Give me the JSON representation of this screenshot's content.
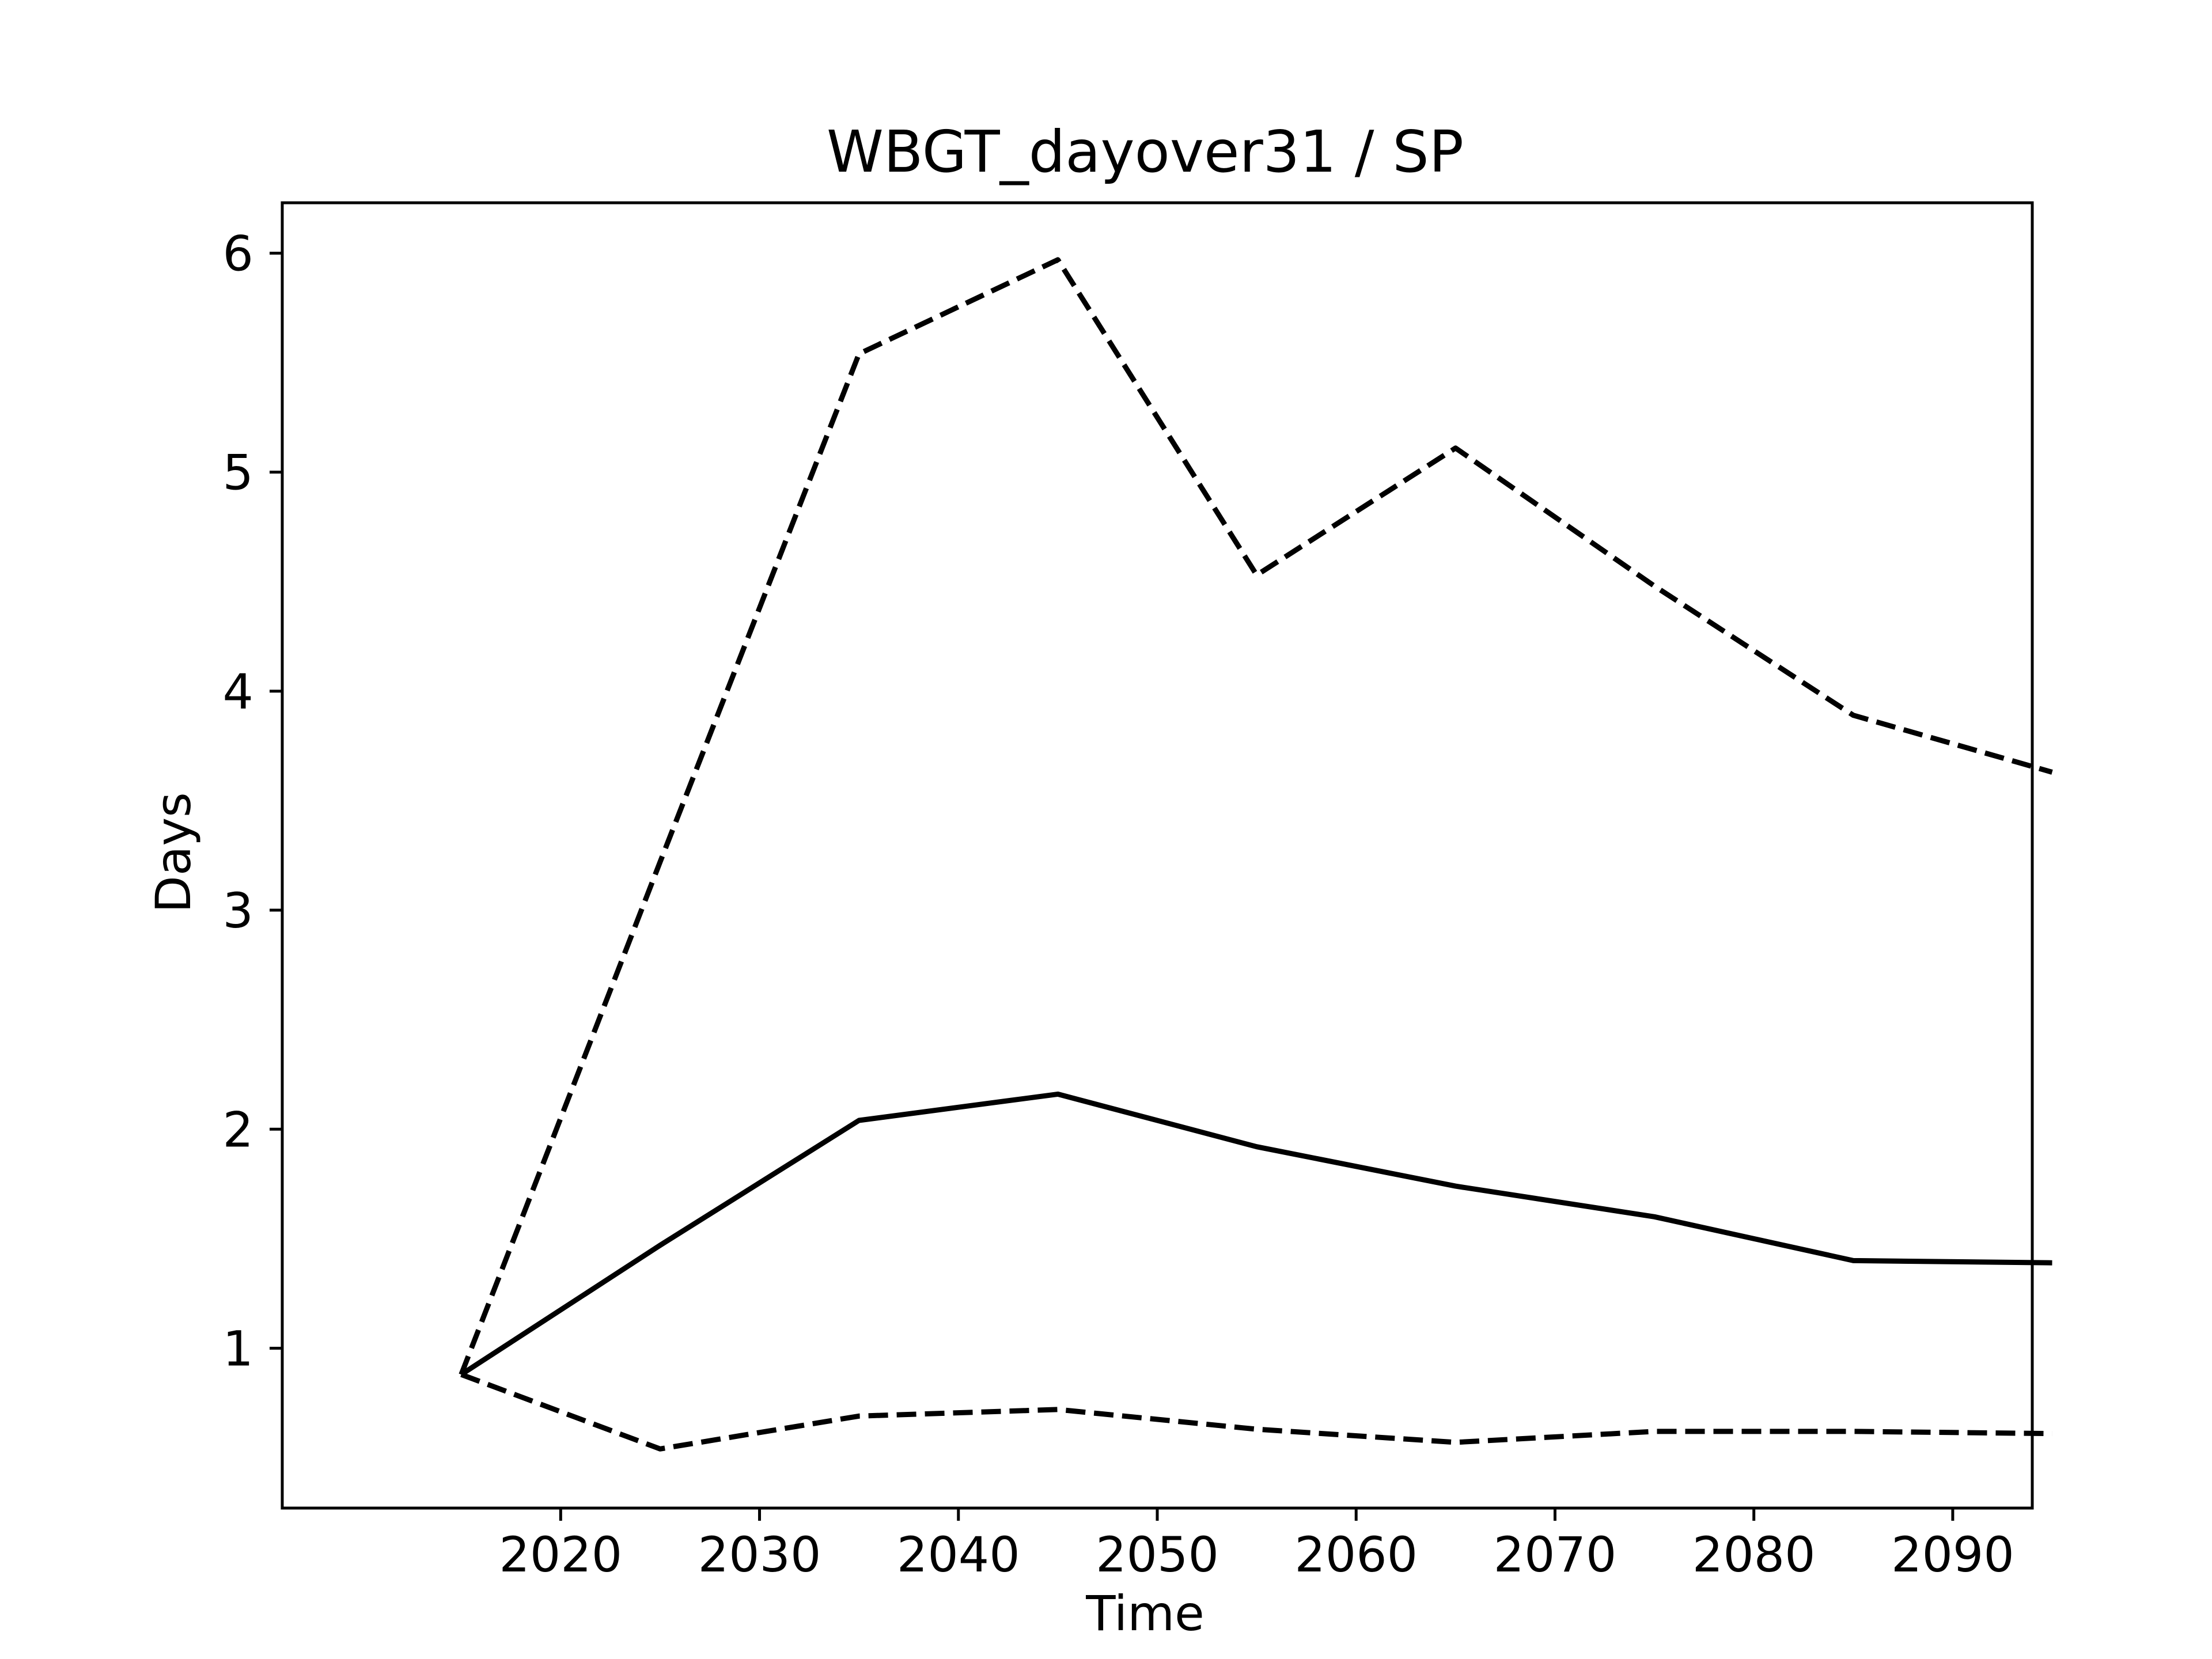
{
  "chart_data": {
    "type": "line",
    "title": "WBGT_dayover31 / SP",
    "xlabel": "Time",
    "ylabel": "Days",
    "x": [
      2015,
      2025,
      2035,
      2045,
      2055,
      2065,
      2075,
      2085,
      2095
    ],
    "xlim": [
      2006,
      2094
    ],
    "ylim": [
      0.27,
      6.23
    ],
    "xticks": [
      2020,
      2030,
      2040,
      2050,
      2060,
      2070,
      2080,
      2090
    ],
    "yticks": [
      1,
      2,
      3,
      4,
      5,
      6
    ],
    "grid": false,
    "series": [
      {
        "style": "dashed",
        "color": "#000000",
        "values": [
          0.88,
          3.22,
          5.54,
          5.97,
          4.53,
          5.11,
          4.48,
          3.89,
          3.63
        ]
      },
      {
        "style": "solid",
        "color": "#000000",
        "values": [
          0.88,
          1.47,
          2.04,
          2.16,
          1.92,
          1.74,
          1.6,
          1.4,
          1.39
        ]
      },
      {
        "style": "dashed",
        "color": "#000000",
        "values": [
          0.88,
          0.54,
          0.69,
          0.72,
          0.63,
          0.57,
          0.62,
          0.62,
          0.61
        ]
      }
    ]
  }
}
